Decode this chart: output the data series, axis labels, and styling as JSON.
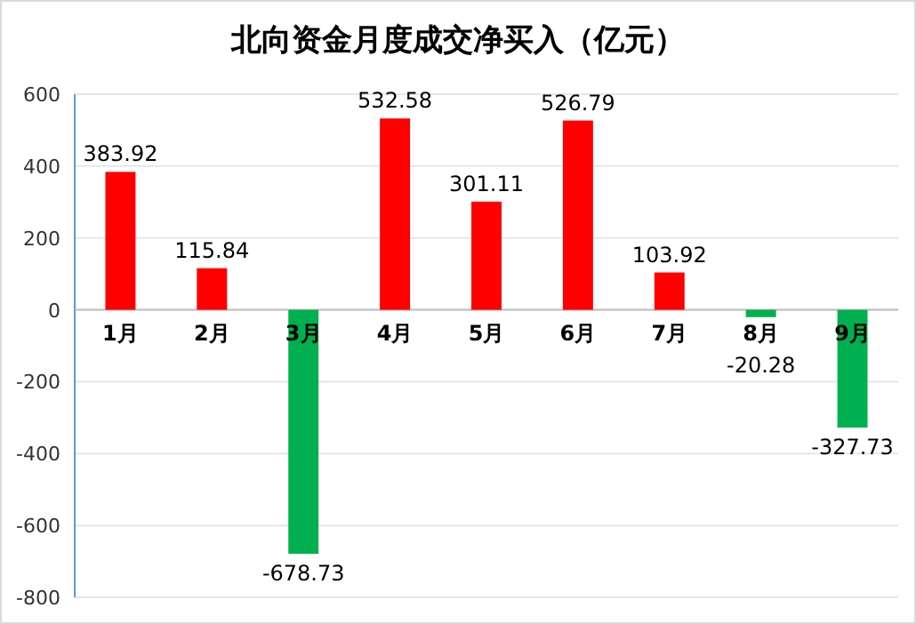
{
  "chart_data": {
    "type": "bar",
    "title": "北向资金月度成交净买入（亿元）",
    "categories": [
      "1月",
      "2月",
      "3月",
      "4月",
      "5月",
      "6月",
      "7月",
      "8月",
      "9月"
    ],
    "values": [
      383.92,
      115.84,
      -678.73,
      532.58,
      301.11,
      526.79,
      103.92,
      -20.28,
      -327.73
    ],
    "colors": [
      "#ff0000",
      "#ff0000",
      "#00b050",
      "#ff0000",
      "#ff0000",
      "#ff0000",
      "#ff0000",
      "#00b050",
      "#00b050"
    ],
    "ylim": [
      -800,
      600
    ],
    "yticks": [
      -800,
      -600,
      -400,
      -200,
      0,
      200,
      400,
      600
    ],
    "grid": "y",
    "data_labels": true
  }
}
